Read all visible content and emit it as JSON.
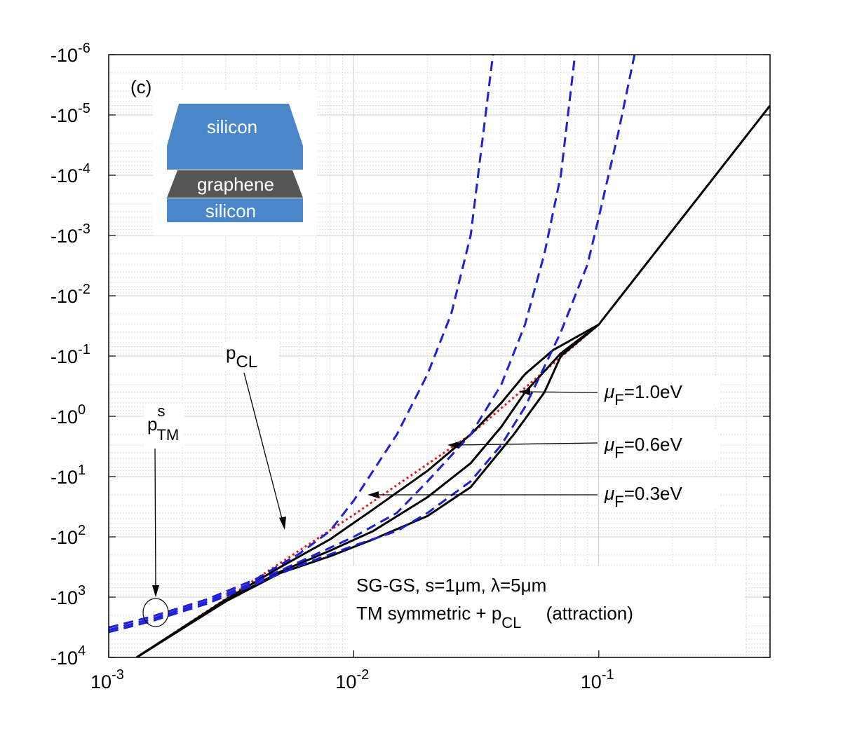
{
  "chart_data": {
    "type": "line",
    "panel_label": "(c)",
    "x_scale": "log",
    "y_scale": "log",
    "xlim": [
      0.001,
      0.5
    ],
    "ylim_magnitude": [
      1e-06,
      10000.0
    ],
    "grid": true,
    "x_ticks": [
      {
        "value": 0.001,
        "base": "10",
        "exp": "-3"
      },
      {
        "value": 0.01,
        "base": "10",
        "exp": "-2"
      },
      {
        "value": 0.1,
        "base": "10",
        "exp": "-1"
      }
    ],
    "y_ticks": [
      {
        "value": 1e-06,
        "base": "-10",
        "exp": "-6"
      },
      {
        "value": 1e-05,
        "base": "-10",
        "exp": "-5"
      },
      {
        "value": 0.0001,
        "base": "-10",
        "exp": "-4"
      },
      {
        "value": 0.001,
        "base": "-10",
        "exp": "-3"
      },
      {
        "value": 0.01,
        "base": "-10",
        "exp": "-2"
      },
      {
        "value": 0.1,
        "base": "-10",
        "exp": "-1"
      },
      {
        "value": 1.0,
        "base": "-10",
        "exp": "0"
      },
      {
        "value": 10.0,
        "base": "-10",
        "exp": "1"
      },
      {
        "value": 100.0,
        "base": "-10",
        "exp": "2"
      },
      {
        "value": 1000.0,
        "base": "-10",
        "exp": "3"
      },
      {
        "value": 10000.0,
        "base": "-10",
        "exp": "4"
      }
    ],
    "series": [
      {
        "name": "pCL",
        "style": "dotted",
        "color": "#e31a1c",
        "points": [
          [
            0.0013,
            10000
          ],
          [
            0.01,
            43
          ],
          [
            0.03,
            2
          ],
          [
            0.1,
            0.03
          ]
        ]
      },
      {
        "name": "total mu_F=1.0eV",
        "style": "solid",
        "color": "#000000",
        "points": [
          [
            0.0013,
            10000
          ],
          [
            0.003,
            1100
          ],
          [
            0.005,
            320
          ],
          [
            0.008,
            110
          ],
          [
            0.012,
            35
          ],
          [
            0.02,
            8
          ],
          [
            0.03,
            2
          ],
          [
            0.04,
            0.6
          ],
          [
            0.05,
            0.2
          ],
          [
            0.065,
            0.08
          ],
          [
            0.1,
            0.03
          ],
          [
            0.5,
            7e-06
          ]
        ]
      },
      {
        "name": "total mu_F=0.6eV",
        "style": "solid",
        "color": "#000000",
        "points": [
          [
            0.0013,
            10000
          ],
          [
            0.003,
            1150
          ],
          [
            0.005,
            380
          ],
          [
            0.008,
            170
          ],
          [
            0.012,
            80
          ],
          [
            0.02,
            22
          ],
          [
            0.03,
            6
          ],
          [
            0.04,
            1.5
          ],
          [
            0.05,
            0.4
          ],
          [
            0.07,
            0.09
          ],
          [
            0.1,
            0.03
          ]
        ]
      },
      {
        "name": "total mu_F=0.3eV",
        "style": "solid",
        "color": "#000000",
        "points": [
          [
            0.0013,
            10000
          ],
          [
            0.003,
            1180
          ],
          [
            0.005,
            400
          ],
          [
            0.008,
            210
          ],
          [
            0.012,
            110
          ],
          [
            0.02,
            45
          ],
          [
            0.03,
            15
          ],
          [
            0.045,
            2
          ],
          [
            0.06,
            0.4
          ],
          [
            0.07,
            0.1
          ],
          [
            0.1,
            0.03
          ]
        ]
      },
      {
        "name": "pTM^s mu_F=1.0eV",
        "style": "dashed",
        "color": "#1f1fd6",
        "points": [
          [
            0.001,
            3200
          ],
          [
            0.0015,
            2100
          ],
          [
            0.0025,
            1100
          ],
          [
            0.004,
            500
          ],
          [
            0.006,
            190
          ],
          [
            0.008,
            80
          ],
          [
            0.01,
            25
          ],
          [
            0.012,
            8
          ],
          [
            0.015,
            2
          ],
          [
            0.02,
            0.2
          ],
          [
            0.025,
            0.02
          ],
          [
            0.03,
            0.001
          ],
          [
            0.037,
            1e-06
          ]
        ]
      },
      {
        "name": "pTM^s mu_F=0.6eV",
        "style": "dashed",
        "color": "#1f1fd6",
        "points": [
          [
            0.001,
            3500
          ],
          [
            0.0015,
            2300
          ],
          [
            0.0025,
            1200
          ],
          [
            0.004,
            550
          ],
          [
            0.006,
            260
          ],
          [
            0.01,
            100
          ],
          [
            0.015,
            40
          ],
          [
            0.02,
            12
          ],
          [
            0.03,
            2
          ],
          [
            0.04,
            0.3
          ],
          [
            0.05,
            0.03
          ],
          [
            0.06,
            0.002
          ],
          [
            0.07,
            0.0001
          ],
          [
            0.08,
            1e-06
          ]
        ]
      },
      {
        "name": "pTM^s mu_F=0.3eV",
        "style": "dashed",
        "color": "#1f1fd6",
        "points": [
          [
            0.001,
            3800
          ],
          [
            0.0015,
            2500
          ],
          [
            0.0025,
            1300
          ],
          [
            0.004,
            600
          ],
          [
            0.006,
            300
          ],
          [
            0.01,
            140
          ],
          [
            0.015,
            80
          ],
          [
            0.02,
            40
          ],
          [
            0.03,
            12
          ],
          [
            0.04,
            3
          ],
          [
            0.05,
            0.7
          ],
          [
            0.06,
            0.15
          ],
          [
            0.07,
            0.04
          ],
          [
            0.09,
            0.003
          ],
          [
            0.1,
            0.0005
          ],
          [
            0.12,
            2e-05
          ],
          [
            0.14,
            1e-06
          ]
        ]
      }
    ],
    "annotations": {
      "pcl": {
        "p": "p",
        "sub": "CL"
      },
      "ptm": {
        "p": "p",
        "sup": "s",
        "sub": "TM"
      },
      "mu": [
        {
          "symbol": "μ",
          "sub": "F",
          "text": "=1.0eV"
        },
        {
          "symbol": "μ",
          "sub": "F",
          "text": "=0.6eV"
        },
        {
          "symbol": "μ",
          "sub": "F",
          "text": "=0.3eV"
        }
      ],
      "legend_line1": "SG-GS, s=1μm, λ=5μm",
      "legend_line2_a": "TM symmetric + p",
      "legend_line2_sub": "CL",
      "legend_line2_b": "(attraction)"
    },
    "inset": {
      "top_layer": "silicon",
      "middle_layer": "graphene",
      "bottom_layer": "silicon"
    }
  }
}
